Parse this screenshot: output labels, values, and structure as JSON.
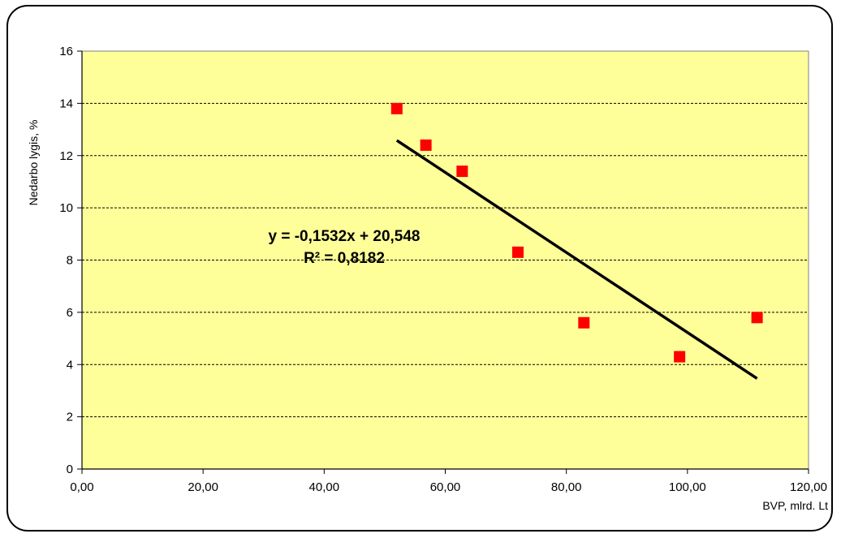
{
  "chart_data": {
    "type": "scatter",
    "ylabel": "Nedarbo lygis, %",
    "xlabel": "BVP, mlrd. Lt",
    "xlim": [
      0,
      120
    ],
    "ylim": [
      0,
      16
    ],
    "x_ticks": [
      "0,00",
      "20,00",
      "40,00",
      "60,00",
      "80,00",
      "100,00",
      "120,00"
    ],
    "y_ticks": [
      "0",
      "2",
      "4",
      "6",
      "8",
      "10",
      "12",
      "14",
      "16"
    ],
    "grid": "horizontal dashed",
    "plot_background": "#ffff99",
    "marker_color": "#ff0000",
    "points": [
      {
        "x": 52.0,
        "y": 13.8
      },
      {
        "x": 56.8,
        "y": 12.4
      },
      {
        "x": 62.8,
        "y": 11.4
      },
      {
        "x": 72.0,
        "y": 8.3
      },
      {
        "x": 82.9,
        "y": 5.6
      },
      {
        "x": 98.7,
        "y": 4.3
      },
      {
        "x": 111.5,
        "y": 5.8
      }
    ],
    "trendline": {
      "slope": -0.1532,
      "intercept": 20.548,
      "x_range": [
        52.0,
        111.5
      ],
      "equation": "y = -0,1532x + 20,548",
      "r_squared": "R² = 0,8182"
    }
  }
}
